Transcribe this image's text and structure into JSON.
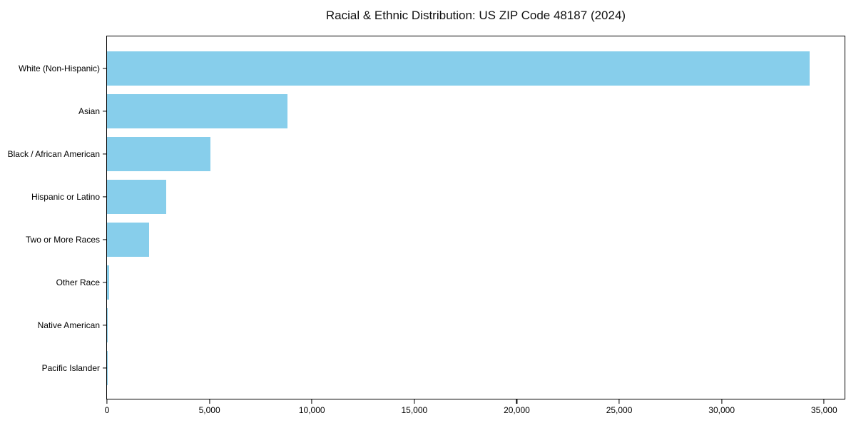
{
  "title": "Racial & Ethnic Distribution: US ZIP Code 48187 (2024)",
  "chart_data": {
    "type": "bar",
    "orientation": "horizontal",
    "title": "Racial & Ethnic Distribution: US ZIP Code 48187 (2024)",
    "categories": [
      "White (Non-Hispanic)",
      "Asian",
      "Black / African American",
      "Hispanic or Latino",
      "Two or More Races",
      "Other Race",
      "Native American",
      "Pacific Islander"
    ],
    "values": [
      34300,
      8800,
      5050,
      2900,
      2050,
      120,
      40,
      15
    ],
    "xlabel": "",
    "ylabel": "",
    "xlim": [
      0,
      36000
    ],
    "x_ticks": [
      0,
      5000,
      10000,
      15000,
      20000,
      25000,
      30000,
      35000
    ],
    "x_tick_labels": [
      "0",
      "5,000",
      "10,000",
      "15,000",
      "20,000",
      "25,000",
      "30,000",
      "35,000"
    ],
    "bar_color": "#87CEEB",
    "axis_color": "#000000",
    "background_color": "#FFFFFF",
    "grid": false,
    "legend": false
  }
}
